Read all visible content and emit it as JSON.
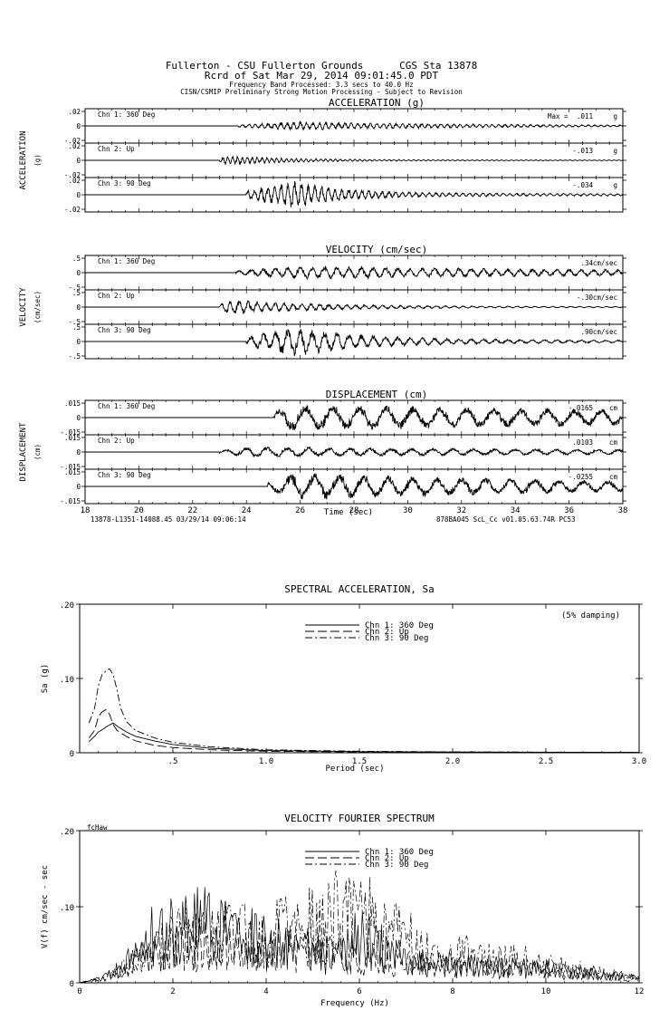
{
  "header": {
    "line1": "Fullerton - CSU Fullerton Grounds      CGS Sta 13878",
    "line2": "Rcrd of Sat Mar 29, 2014 09:01:45.0 PDT",
    "line3": "Frequency Band Processed: 3.3 secs to 40.0 Hz",
    "line4": "CISN/CSMIP Preliminary Strong Motion Processing - Subject to Revision"
  },
  "chart_data": [
    {
      "type": "line",
      "kind": "time-history",
      "title": "ACCELERATION (g)",
      "ylabel": "ACCELERATION",
      "yunit": "(g)",
      "xlim": [
        18,
        38
      ],
      "ylim": [
        -0.02,
        0.02
      ],
      "ytick_labels": [
        ".02",
        "0",
        "-.02"
      ],
      "unit_label": "g",
      "max_prefix": "Max =",
      "channels": [
        {
          "label": "Chn 1: 360 Deg",
          "peak": ".011",
          "onset": 23.7,
          "peak_time": 25.8,
          "amplitude": 0.3,
          "decay": 0.15,
          "freq": 4.2
        },
        {
          "label": "Chn 2: Up",
          "peak": "-.013",
          "onset": 23.0,
          "peak_time": 23.2,
          "amplitude": 0.35,
          "decay": 0.45,
          "freq": 5.5
        },
        {
          "label": "Chn 3: 90 Deg",
          "peak": "-.034",
          "onset": 24.0,
          "peak_time": 25.8,
          "amplitude": 0.95,
          "decay": 0.55,
          "freq": 4.0
        }
      ]
    },
    {
      "type": "line",
      "kind": "time-history",
      "title": "VELOCITY (cm/sec)",
      "ylabel": "VELOCITY",
      "yunit": "(cm/sec)",
      "xlim": [
        18,
        38
      ],
      "ylim": [
        -0.5,
        0.5
      ],
      "ytick_labels": [
        ".5",
        "0",
        "-.5"
      ],
      "unit_label": "cm/sec",
      "channels": [
        {
          "label": "Chn 1: 360 Deg",
          "peak": ".34",
          "onset": 23.6,
          "peak_time": 25.8,
          "amplitude": 0.45,
          "decay": 0.06,
          "freq": 2.2
        },
        {
          "label": "Chn 2: Up",
          "peak": "-.30",
          "onset": 23.0,
          "peak_time": 23.3,
          "amplitude": 0.5,
          "decay": 0.3,
          "freq": 3.0
        },
        {
          "label": "Chn 3: 90 Deg",
          "peak": ".90",
          "onset": 24.0,
          "peak_time": 25.8,
          "amplitude": 0.98,
          "decay": 0.35,
          "freq": 2.2
        }
      ]
    },
    {
      "type": "line",
      "kind": "time-history",
      "title": "DISPLACEMENT (cm)",
      "ylabel": "DISPLACEMENT",
      "yunit": "(cm)",
      "xlim": [
        18,
        38
      ],
      "ylim": [
        -0.015,
        0.015
      ],
      "ytick_labels": [
        ".015",
        "0",
        "-.015"
      ],
      "unit_label": "cm",
      "xlabel": "Time (sec)",
      "xtick_labels": [
        "18",
        "20",
        "22",
        "24",
        "26",
        "28",
        "30",
        "32",
        "34",
        "36",
        "38"
      ],
      "channels": [
        {
          "label": "Chn 1: 360 Deg",
          "peak": "-.0165",
          "onset": 25.0,
          "peak_time": 25.5,
          "amplitude": 0.9,
          "decay": 0.04,
          "freq": 1.0
        },
        {
          "label": "Chn 2: Up",
          "peak": ".0103",
          "onset": 23.0,
          "peak_time": 24.0,
          "amplitude": 0.35,
          "decay": 0.05,
          "freq": 1.3
        },
        {
          "label": "Chn 3: 90 Deg",
          "peak": "-.0255",
          "onset": 24.8,
          "peak_time": 25.8,
          "amplitude": 0.95,
          "decay": 0.08,
          "freq": 1.1
        }
      ]
    },
    {
      "type": "line",
      "kind": "spectrum",
      "title": "SPECTRAL ACCELERATION, Sa",
      "ylabel": "Sa (g)",
      "xlabel": "Period (sec)",
      "annotation": "(5% damping)",
      "xlim": [
        0,
        3.0
      ],
      "ylim": [
        0,
        0.2
      ],
      "xtick_labels": [
        ".5",
        "1.0",
        "1.5",
        "2.0",
        "2.5",
        "3.0"
      ],
      "xtick_values": [
        0.5,
        1.0,
        1.5,
        2.0,
        2.5,
        3.0
      ],
      "ytick_labels": [
        ".20",
        ".10",
        "0"
      ],
      "ytick_values": [
        0.2,
        0.1,
        0
      ],
      "legend": [
        "Chn 1:  360 Deg",
        "Chn 2:  Up",
        "Chn 3:  90 Deg"
      ],
      "series": [
        {
          "name": "Chn 1:  360 Deg",
          "dash": "none",
          "x": [
            0.05,
            0.08,
            0.1,
            0.12,
            0.15,
            0.18,
            0.2,
            0.25,
            0.3,
            0.4,
            0.5,
            0.7,
            1.0,
            1.5,
            2.0,
            2.5,
            3.0
          ],
          "y": [
            0.015,
            0.022,
            0.028,
            0.031,
            0.036,
            0.04,
            0.036,
            0.028,
            0.022,
            0.016,
            0.011,
            0.006,
            0.003,
            0.0015,
            0.001,
            0.0007,
            0.0005
          ]
        },
        {
          "name": "Chn 2:  Up",
          "dash": "10,4",
          "x": [
            0.05,
            0.08,
            0.1,
            0.12,
            0.14,
            0.16,
            0.18,
            0.2,
            0.25,
            0.3,
            0.4,
            0.5,
            0.7,
            1.0,
            1.5,
            2.0,
            2.5,
            3.0
          ],
          "y": [
            0.02,
            0.03,
            0.048,
            0.055,
            0.058,
            0.052,
            0.038,
            0.03,
            0.022,
            0.016,
            0.01,
            0.007,
            0.004,
            0.002,
            0.001,
            0.0007,
            0.0005,
            0.0004
          ]
        },
        {
          "name": "Chn 3:  90 Deg",
          "dash": "8,3,2,3",
          "x": [
            0.05,
            0.08,
            0.1,
            0.12,
            0.14,
            0.16,
            0.18,
            0.2,
            0.22,
            0.25,
            0.3,
            0.4,
            0.5,
            0.7,
            1.0,
            1.5,
            2.0,
            2.5,
            3.0
          ],
          "y": [
            0.04,
            0.06,
            0.09,
            0.105,
            0.11,
            0.113,
            0.105,
            0.085,
            0.06,
            0.042,
            0.03,
            0.02,
            0.014,
            0.008,
            0.004,
            0.002,
            0.0012,
            0.0008,
            0.0005
          ]
        }
      ]
    },
    {
      "type": "line",
      "kind": "spectrum",
      "title": "VELOCITY FOURIER SPECTRUM",
      "ylabel": "V(f)   cm/sec - sec",
      "xlabel": "Frequency (Hz)",
      "corner_label": "fcHaw",
      "xlim": [
        0,
        12
      ],
      "ylim": [
        0,
        0.2
      ],
      "xtick_labels": [
        "0",
        "2",
        "4",
        "6",
        "8",
        "10",
        "12"
      ],
      "xtick_values": [
        0,
        2,
        4,
        6,
        8,
        10,
        12
      ],
      "ytick_labels": [
        ".20",
        ".10",
        "0"
      ],
      "ytick_values": [
        0.2,
        0.1,
        0
      ],
      "legend": [
        "Chn 1:  360 Deg",
        "Chn 2:  Up",
        "Chn 3:  90 Deg"
      ],
      "series": [
        {
          "name": "Chn 1:  360 Deg",
          "dash": "none",
          "x": [
            0,
            0.5,
            1.0,
            1.5,
            2.0,
            2.5,
            3.0,
            3.5,
            4.0,
            4.5,
            5.0,
            5.5,
            6.0,
            6.5,
            7.0,
            7.5,
            8.0,
            9.0,
            10.0,
            11.0,
            12.0
          ],
          "y": [
            0,
            0.01,
            0.04,
            0.1,
            0.12,
            0.13,
            0.12,
            0.13,
            0.09,
            0.09,
            0.07,
            0.06,
            0.1,
            0.08,
            0.05,
            0.045,
            0.04,
            0.035,
            0.03,
            0.02,
            0.01
          ]
        },
        {
          "name": "Chn 2:  Up",
          "dash": "10,4",
          "x": [
            0,
            0.5,
            1.0,
            1.5,
            2.0,
            2.5,
            3.0,
            3.5,
            4.0,
            4.5,
            5.0,
            5.5,
            6.0,
            6.5,
            7.0,
            7.5,
            8.0,
            9.0,
            10.0,
            11.0,
            12.0
          ],
          "y": [
            0,
            0.01,
            0.04,
            0.07,
            0.08,
            0.09,
            0.1,
            0.08,
            0.09,
            0.08,
            0.07,
            0.06,
            0.05,
            0.05,
            0.045,
            0.04,
            0.04,
            0.035,
            0.03,
            0.02,
            0.01
          ]
        },
        {
          "name": "Chn 3:  90 Deg",
          "dash": "8,3,2,3",
          "x": [
            0,
            0.5,
            1.0,
            1.5,
            2.0,
            2.5,
            3.0,
            3.5,
            4.0,
            4.5,
            5.0,
            5.5,
            6.0,
            6.5,
            7.0,
            7.5,
            8.0,
            9.0,
            9.3,
            10.0,
            11.0,
            12.0
          ],
          "y": [
            0,
            0.01,
            0.035,
            0.07,
            0.1,
            0.11,
            0.11,
            0.11,
            0.1,
            0.12,
            0.13,
            0.15,
            0.16,
            0.12,
            0.1,
            0.08,
            0.07,
            0.05,
            0.06,
            0.04,
            0.025,
            0.01
          ]
        }
      ]
    }
  ],
  "footer": {
    "left": "13878-L1351-14088.45 03/29/14 09:06:14",
    "right": "878BA045  ScL_Cc  v01.05.63.74R PC53"
  }
}
